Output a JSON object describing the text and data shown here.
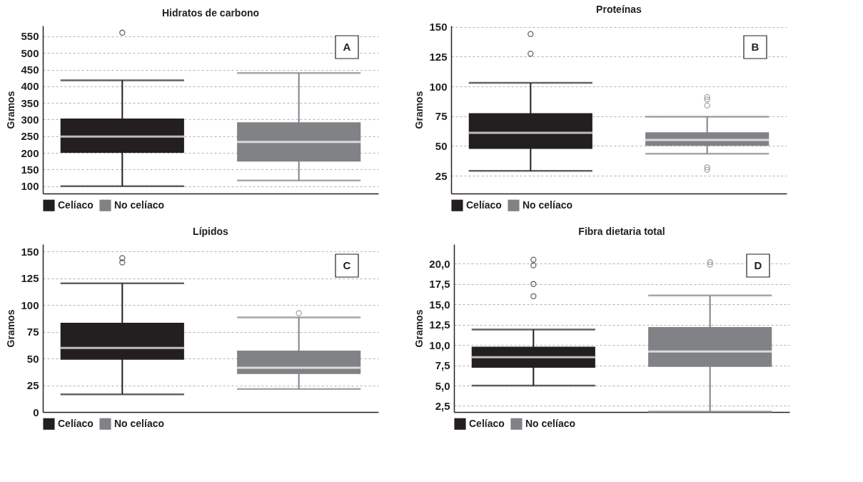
{
  "chart_data": [
    {
      "type": "box",
      "title": "Hidratos de carbono",
      "ylabel": "Gramos",
      "annotations": [
        "A"
      ],
      "categories": [
        null
      ],
      "ylim": [
        78,
        582
      ],
      "yticks": [
        100,
        150,
        200,
        250,
        300,
        350,
        400,
        450,
        500,
        550
      ],
      "grid": "y",
      "legend": "bottom",
      "tick_labels": "y",
      "series": [
        {
          "name": "Celíaco",
          "color": "#231f20",
          "boxes": [
            {
              "low": 100,
              "q1": 200,
              "median": 249,
              "q3": 303,
              "high": 418,
              "outliers": [
                561
              ]
            }
          ]
        },
        {
          "name": "No celíaco",
          "color": "#808285",
          "boxes": [
            {
              "low": 117,
              "q1": 174,
              "median": 233,
              "q3": 292,
              "high": 440
            }
          ]
        }
      ]
    },
    {
      "type": "box",
      "title": "Proteínas",
      "ylabel": "Gramos",
      "annotations": [
        "B"
      ],
      "categories": [
        null
      ],
      "ylim": [
        10,
        151
      ],
      "yticks": [
        25,
        50,
        75,
        100,
        125,
        150
      ],
      "grid": "y",
      "legend": "bottom",
      "tick_labels": "y",
      "series": [
        {
          "name": "Celíaco",
          "color": "#231f20",
          "boxes": [
            {
              "low": 29,
              "q1": 47.5,
              "median": 61,
              "q3": 77.5,
              "high": 103,
              "outliers": [
                144,
                127.5
              ]
            }
          ]
        },
        {
          "name": "No celíaco",
          "color": "#808285",
          "boxes": [
            {
              "low": 43.5,
              "q1": 50,
              "median": 55,
              "q3": 61.5,
              "high": 74.5,
              "outliers": [
                91,
                89,
                84,
                32,
                30
              ]
            }
          ]
        }
      ]
    },
    {
      "type": "box",
      "title": "Lípidos",
      "ylabel": "Gramos",
      "annotations": [
        "C"
      ],
      "categories": [
        null
      ],
      "ylim": [
        0,
        157
      ],
      "yticks": [
        0,
        25,
        50,
        75,
        100,
        125,
        150
      ],
      "grid": "y",
      "legend": "bottom",
      "tick_labels": "y",
      "series": [
        {
          "name": "Celíaco",
          "color": "#231f20",
          "boxes": [
            {
              "low": 16.5,
              "q1": 49,
              "median": 60,
              "q3": 83.5,
              "high": 120.5,
              "outliers": [
                144,
                140
              ]
            }
          ]
        },
        {
          "name": "No celíaco",
          "color": "#808285",
          "boxes": [
            {
              "low": 21.5,
              "q1": 35.5,
              "median": 41.5,
              "q3": 57.5,
              "high": 88.5,
              "outliers": [
                92.5
              ]
            }
          ]
        }
      ]
    },
    {
      "type": "box",
      "title": "Fibra dietaria total",
      "ylabel": "Gramos",
      "annotations": [
        "D"
      ],
      "categories": [
        null
      ],
      "ylim": [
        1.75,
        22.4
      ],
      "yticks": [
        {
          "value": 2.5,
          "label": "2,5"
        },
        {
          "value": 5,
          "label": "5,0"
        },
        {
          "value": 7.5,
          "label": "7,5"
        },
        {
          "value": 10,
          "label": "10,0"
        },
        {
          "value": 12.5,
          "label": "12,5"
        },
        {
          "value": 15,
          "label": "15,0"
        },
        {
          "value": 17.5,
          "label": "17,5"
        },
        {
          "value": 20,
          "label": "20,0"
        }
      ],
      "grid": "y",
      "legend": "bottom",
      "tick_labels": "y",
      "series": [
        {
          "name": "Celíaco",
          "color": "#231f20",
          "boxes": [
            {
              "low": 5,
              "q1": 7.2,
              "median": 8.5,
              "q3": 9.8,
              "high": 11.9,
              "outliers": [
                20.5,
                19.8,
                17.5,
                16
              ]
            }
          ]
        },
        {
          "name": "No celíaco",
          "color": "#808285",
          "boxes": [
            {
              "low": 1.8,
              "q1": 7.3,
              "median": 9.2,
              "q3": 12.2,
              "high": 16.1,
              "outliers": [
                20.2,
                19.9
              ]
            }
          ]
        }
      ]
    }
  ]
}
